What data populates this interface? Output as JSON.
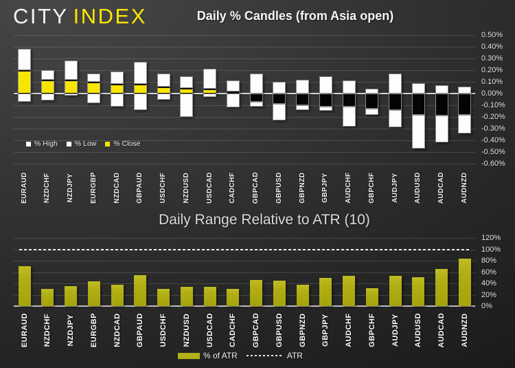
{
  "brand": {
    "city": "CITY",
    "index": "INDEX",
    "index_color": "#ffe600"
  },
  "chart_data": [
    {
      "type": "bar",
      "subtype": "stacked-candle-columns",
      "title": "Daily % Candles (from Asia open)",
      "categories": [
        "EURAUD",
        "NZDCHF",
        "NZDJPY",
        "EURGBP",
        "NZDCAD",
        "GBPAUD",
        "USDCHF",
        "NZDUSD",
        "USDCAD",
        "CADCHF",
        "GBPCAD",
        "GBPUSD",
        "GBPNZD",
        "GBPJPY",
        "AUDCHF",
        "GBPCHF",
        "AUDJPY",
        "AUDUSD",
        "AUDCAD",
        "AUDNZD"
      ],
      "series": [
        {
          "name": "% High",
          "color": "#ffffff",
          "values": [
            0.38,
            0.2,
            0.28,
            0.17,
            0.19,
            0.27,
            0.17,
            0.15,
            0.21,
            0.11,
            0.17,
            0.1,
            0.12,
            0.15,
            0.11,
            0.04,
            0.17,
            0.09,
            0.07,
            0.06
          ]
        },
        {
          "name": "% Low",
          "color": "#ffffff",
          "values": [
            -0.07,
            -0.06,
            -0.02,
            -0.08,
            -0.11,
            -0.14,
            -0.05,
            -0.2,
            -0.03,
            -0.12,
            -0.11,
            -0.23,
            -0.14,
            -0.15,
            -0.28,
            -0.18,
            -0.29,
            -0.47,
            -0.42,
            -0.34
          ]
        },
        {
          "name": "% Close",
          "color": "#f7e602",
          "values": [
            0.2,
            0.12,
            0.12,
            0.1,
            0.08,
            0.08,
            0.06,
            0.05,
            0.04,
            0.02,
            -0.07,
            -0.09,
            -0.1,
            -0.11,
            -0.11,
            -0.13,
            -0.14,
            -0.18,
            -0.19,
            -0.18
          ]
        }
      ],
      "negative_close_color": "#000000",
      "ylim": [
        -0.6,
        0.5
      ],
      "ytick_labels": [
        "0.50%",
        "0.40%",
        "0.30%",
        "0.20%",
        "0.10%",
        "0.00%",
        "-0.10%",
        "-0.20%",
        "-0.30%",
        "-0.40%",
        "-0.50%",
        "-0.60%"
      ],
      "axis_side": "right",
      "grid": true,
      "legend_position": "inside-bottom-left"
    },
    {
      "type": "bar",
      "title": "Daily Range Relative to ATR (10)",
      "categories": [
        "EURAUD",
        "NZDCHF",
        "NZDJPY",
        "EURGBP",
        "NZDCAD",
        "GBPAUD",
        "USDCHF",
        "NZDUSD",
        "USDCAD",
        "CADCHF",
        "GBPCAD",
        "GBPUSD",
        "GBPNZD",
        "GBPJPY",
        "AUDCHF",
        "GBPCHF",
        "AUDJPY",
        "AUDUSD",
        "AUDCAD",
        "AUDNZD"
      ],
      "series": [
        {
          "name": "% of ATR",
          "color": "#b3b116",
          "values": [
            70,
            30,
            35,
            44,
            38,
            55,
            30,
            34,
            34,
            30,
            46,
            45,
            38,
            50,
            53,
            32,
            53,
            51,
            66,
            84
          ]
        }
      ],
      "atr_line": {
        "label": "ATR",
        "value": 100,
        "style": "dotted",
        "color": "#ededed"
      },
      "ylim": [
        0,
        120
      ],
      "ytick_labels": [
        "120%",
        "100%",
        "80%",
        "60%",
        "40%",
        "20%",
        "0%"
      ],
      "axis_side": "right",
      "grid": true,
      "legend_position": "bottom-center"
    }
  ]
}
